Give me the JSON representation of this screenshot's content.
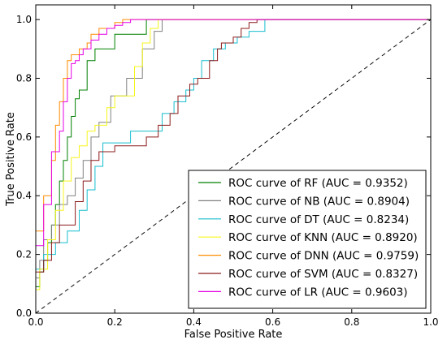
{
  "chart_data": {
    "type": "line",
    "xlabel": "False Positive Rate",
    "ylabel": "True Positive Rate",
    "xlim": [
      0.0,
      1.0
    ],
    "ylim": [
      0.0,
      1.05
    ],
    "xticks": [
      "0.0",
      "0.2",
      "0.4",
      "0.6",
      "0.8",
      "1.0"
    ],
    "yticks": [
      "0.0",
      "0.2",
      "0.4",
      "0.6",
      "0.8",
      "1.0"
    ],
    "grid": false,
    "legend_position": "bottom-right",
    "diagonal": {
      "x": [
        0,
        1
      ],
      "y": [
        0,
        1
      ],
      "style": "dashed",
      "color": "#000000"
    },
    "series": [
      {
        "name": "ROC curve of RF (AUC = 0.9352)",
        "color": "#008000",
        "x": [
          0,
          0,
          0.01,
          0.01,
          0.02,
          0.02,
          0.03,
          0.03,
          0.04,
          0.04,
          0.05,
          0.05,
          0.06,
          0.06,
          0.07,
          0.07,
          0.08,
          0.08,
          0.09,
          0.09,
          0.1,
          0.1,
          0.11,
          0.11,
          0.13,
          0.13,
          0.15,
          0.15,
          0.2,
          0.2,
          0.28,
          0.28,
          1.0
        ],
        "y": [
          0,
          0.09,
          0.09,
          0.14,
          0.14,
          0.18,
          0.18,
          0.24,
          0.24,
          0.3,
          0.3,
          0.37,
          0.37,
          0.45,
          0.45,
          0.52,
          0.52,
          0.6,
          0.6,
          0.67,
          0.67,
          0.73,
          0.73,
          0.76,
          0.76,
          0.86,
          0.86,
          0.9,
          0.9,
          0.95,
          0.95,
          1.0,
          1.0
        ]
      },
      {
        "name": "ROC curve of NB (AUC = 0.8904)",
        "color": "#808080",
        "x": [
          0,
          0,
          0.01,
          0.01,
          0.02,
          0.02,
          0.04,
          0.04,
          0.06,
          0.06,
          0.08,
          0.08,
          0.1,
          0.1,
          0.12,
          0.12,
          0.14,
          0.14,
          0.16,
          0.16,
          0.19,
          0.19,
          0.23,
          0.23,
          0.27,
          0.27,
          0.3,
          0.3,
          0.32,
          0.32,
          1.0
        ],
        "y": [
          0,
          0.12,
          0.12,
          0.18,
          0.18,
          0.25,
          0.25,
          0.3,
          0.3,
          0.37,
          0.37,
          0.4,
          0.4,
          0.46,
          0.46,
          0.52,
          0.52,
          0.6,
          0.6,
          0.65,
          0.65,
          0.74,
          0.74,
          0.8,
          0.8,
          0.9,
          0.9,
          0.96,
          0.96,
          1.0,
          1.0
        ]
      },
      {
        "name": "ROC curve of DT (AUC = 0.8234)",
        "color": "#17becf",
        "x": [
          0,
          0,
          0.02,
          0.02,
          0.05,
          0.05,
          0.08,
          0.08,
          0.11,
          0.11,
          0.13,
          0.13,
          0.15,
          0.15,
          0.17,
          0.17,
          0.24,
          0.24,
          0.32,
          0.32,
          0.35,
          0.35,
          0.38,
          0.38,
          0.4,
          0.4,
          0.42,
          0.42,
          0.45,
          0.45,
          0.48,
          0.48,
          0.51,
          0.51,
          0.54,
          0.54,
          0.58,
          0.58,
          1.0
        ],
        "y": [
          0,
          0.15,
          0.15,
          0.2,
          0.2,
          0.24,
          0.24,
          0.28,
          0.28,
          0.35,
          0.35,
          0.42,
          0.42,
          0.5,
          0.5,
          0.58,
          0.58,
          0.62,
          0.62,
          0.68,
          0.68,
          0.72,
          0.72,
          0.76,
          0.76,
          0.8,
          0.8,
          0.86,
          0.86,
          0.9,
          0.9,
          0.92,
          0.92,
          0.94,
          0.94,
          0.96,
          0.96,
          1.0,
          1.0
        ]
      },
      {
        "name": "ROC curve of KNN (AUC = 0.8920)",
        "color": "#f5f51e",
        "x": [
          0,
          0,
          0.01,
          0.01,
          0.03,
          0.03,
          0.05,
          0.05,
          0.07,
          0.07,
          0.09,
          0.09,
          0.11,
          0.11,
          0.13,
          0.13,
          0.15,
          0.15,
          0.18,
          0.18,
          0.2,
          0.2,
          0.25,
          0.25,
          0.27,
          0.27,
          0.29,
          0.29,
          0.31,
          0.31,
          1.0
        ],
        "y": [
          0,
          0.08,
          0.08,
          0.15,
          0.15,
          0.25,
          0.25,
          0.35,
          0.35,
          0.45,
          0.45,
          0.53,
          0.53,
          0.57,
          0.57,
          0.62,
          0.62,
          0.64,
          0.64,
          0.7,
          0.7,
          0.74,
          0.74,
          0.84,
          0.84,
          0.92,
          0.92,
          0.97,
          0.97,
          1.0,
          1.0
        ]
      },
      {
        "name": "ROC curve of DNN (AUC = 0.9759)",
        "color": "#ff8c00",
        "x": [
          0,
          0,
          0.02,
          0.02,
          0.04,
          0.04,
          0.05,
          0.05,
          0.06,
          0.06,
          0.07,
          0.07,
          0.08,
          0.08,
          0.09,
          0.09,
          0.11,
          0.11,
          0.13,
          0.13,
          0.14,
          0.14,
          0.16,
          0.16,
          0.2,
          0.2,
          0.22,
          0.22,
          1.0
        ],
        "y": [
          0,
          0.28,
          0.28,
          0.4,
          0.4,
          0.52,
          0.52,
          0.64,
          0.64,
          0.72,
          0.72,
          0.8,
          0.8,
          0.86,
          0.86,
          0.88,
          0.88,
          0.9,
          0.9,
          0.92,
          0.92,
          0.95,
          0.95,
          0.97,
          0.97,
          0.99,
          0.99,
          1.0,
          1.0
        ]
      },
      {
        "name": "ROC curve of SVM (AUC = 0.8327)",
        "color": "#8b1a1a",
        "x": [
          0,
          0,
          0.02,
          0.02,
          0.04,
          0.04,
          0.06,
          0.06,
          0.1,
          0.1,
          0.12,
          0.12,
          0.14,
          0.14,
          0.16,
          0.16,
          0.2,
          0.2,
          0.28,
          0.28,
          0.31,
          0.31,
          0.34,
          0.34,
          0.36,
          0.36,
          0.39,
          0.39,
          0.41,
          0.41,
          0.44,
          0.44,
          0.46,
          0.46,
          0.47,
          0.47,
          0.5,
          0.5,
          0.52,
          0.52,
          0.54,
          0.54,
          0.56,
          0.56,
          1.0
        ],
        "y": [
          0,
          0.14,
          0.14,
          0.18,
          0.18,
          0.24,
          0.24,
          0.3,
          0.3,
          0.38,
          0.38,
          0.45,
          0.45,
          0.52,
          0.52,
          0.55,
          0.55,
          0.57,
          0.57,
          0.6,
          0.6,
          0.64,
          0.64,
          0.68,
          0.68,
          0.74,
          0.74,
          0.78,
          0.78,
          0.8,
          0.8,
          0.86,
          0.86,
          0.9,
          0.9,
          0.92,
          0.92,
          0.94,
          0.94,
          0.97,
          0.97,
          0.99,
          0.99,
          1.0,
          1.0
        ]
      },
      {
        "name": "ROC curve of LR (AUC = 0.9603)",
        "color": "#e600e6",
        "x": [
          0,
          0,
          0.02,
          0.02,
          0.04,
          0.04,
          0.06,
          0.06,
          0.07,
          0.07,
          0.08,
          0.08,
          0.09,
          0.09,
          0.1,
          0.1,
          0.11,
          0.11,
          0.12,
          0.12,
          0.14,
          0.14,
          0.16,
          0.16,
          0.18,
          0.18,
          0.2,
          0.2,
          0.22,
          0.22,
          0.24,
          0.24,
          1.0
        ],
        "y": [
          0,
          0.23,
          0.23,
          0.37,
          0.37,
          0.55,
          0.55,
          0.62,
          0.62,
          0.72,
          0.72,
          0.8,
          0.8,
          0.85,
          0.85,
          0.86,
          0.86,
          0.88,
          0.88,
          0.9,
          0.9,
          0.93,
          0.93,
          0.95,
          0.95,
          0.97,
          0.97,
          0.98,
          0.98,
          0.99,
          0.99,
          1.0,
          1.0
        ]
      }
    ]
  }
}
